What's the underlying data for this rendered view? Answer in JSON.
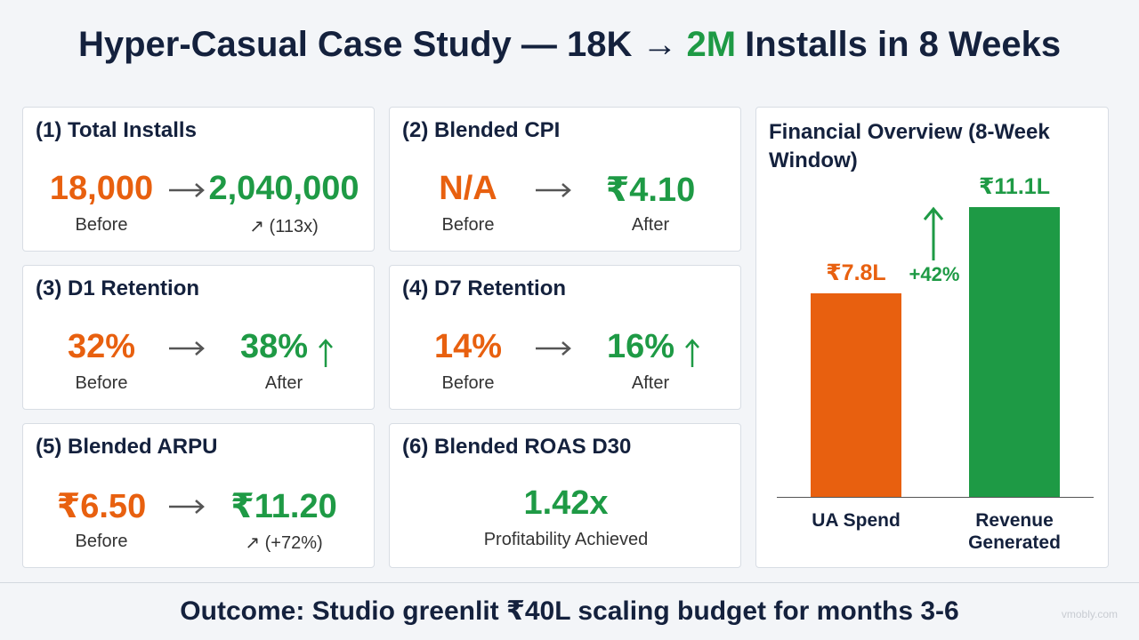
{
  "header": {
    "title_start": "Hyper-Casual Case Study — 18K →",
    "title_highlight": "2M",
    "title_end": "Installs in 8 Weeks"
  },
  "cards": [
    {
      "label": "(1) Total Installs",
      "before": "18,000",
      "before_caption": "Before",
      "after": "2,040,000",
      "after_caption": "↗ (113x)"
    },
    {
      "label": "(2) Blended CPI",
      "before": "N/A",
      "before_caption": "Before",
      "after": "₹4.10",
      "after_caption": "After"
    },
    {
      "label": "(3) D1 Retention",
      "before": "32%",
      "before_caption": "Before",
      "after": "38%",
      "after_caption": "After"
    },
    {
      "label": "(4) D7 Retention",
      "before": "14%",
      "before_caption": "Before",
      "after": "16%",
      "after_caption": "After"
    },
    {
      "label": "(5) Blended ARPU",
      "before": "₹6.50",
      "before_caption": "Before",
      "after": "₹11.20",
      "after_caption": "↗ (+72%)"
    },
    {
      "label": "(6) Blended ROAS D30",
      "value": "1.42x",
      "caption": "Profitability Achieved"
    }
  ],
  "chart_data": {
    "type": "bar",
    "title": "Financial Overview (8-Week Window)",
    "categories": [
      "UA Spend",
      "Revenue Generated"
    ],
    "values": [
      7.8,
      11.1
    ],
    "value_labels": [
      "₹7.8L",
      "₹11.1L"
    ],
    "colors": [
      "#e8600f",
      "#1e9a45"
    ],
    "annotation": "+42%"
  },
  "footer": {
    "text": "Outcome: Studio greenlit ₹40L scaling budget for months 3-6",
    "watermark": "vmobly.com"
  }
}
